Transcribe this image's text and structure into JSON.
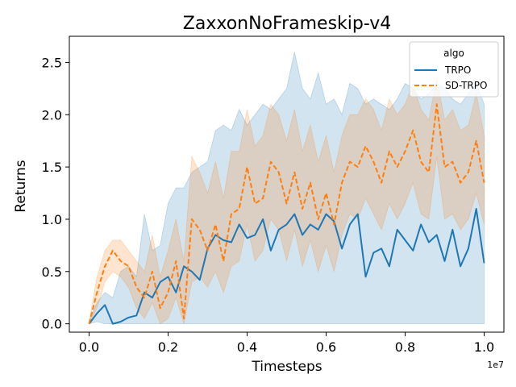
{
  "chart_data": {
    "type": "line",
    "title": "ZaxxonNoFrameskip-v4",
    "xlabel": "Timesteps",
    "ylabel": "Returns",
    "x_offset_label": "1e7",
    "xlim": [
      -0.05,
      1.05
    ],
    "ylim": [
      -0.08,
      2.75
    ],
    "x_ticks": [
      0.0,
      0.2,
      0.4,
      0.6,
      0.8,
      1.0
    ],
    "x_tick_labels": [
      "0.0",
      "0.2",
      "0.4",
      "0.6",
      "0.8",
      "1.0"
    ],
    "y_ticks": [
      0.0,
      0.5,
      1.0,
      1.5,
      2.0,
      2.5
    ],
    "y_tick_labels": [
      "0.0",
      "0.5",
      "1.0",
      "1.5",
      "2.0",
      "2.5"
    ],
    "grid": false,
    "legend": {
      "title": "algo",
      "placement": "top-right"
    },
    "series": [
      {
        "name": "TRPO",
        "color": "#1f77b4",
        "dash": "solid",
        "x": [
          0.0,
          0.02,
          0.04,
          0.06,
          0.08,
          0.1,
          0.12,
          0.14,
          0.16,
          0.18,
          0.2,
          0.22,
          0.24,
          0.26,
          0.28,
          0.3,
          0.32,
          0.34,
          0.36,
          0.38,
          0.4,
          0.42,
          0.44,
          0.46,
          0.48,
          0.5,
          0.52,
          0.54,
          0.56,
          0.58,
          0.6,
          0.62,
          0.64,
          0.66,
          0.68,
          0.7,
          0.72,
          0.74,
          0.76,
          0.78,
          0.8,
          0.82,
          0.84,
          0.86,
          0.88,
          0.9,
          0.92,
          0.94,
          0.96,
          0.98,
          1.0
        ],
        "y": [
          0.0,
          0.1,
          0.18,
          0.0,
          0.02,
          0.06,
          0.08,
          0.3,
          0.25,
          0.4,
          0.45,
          0.3,
          0.55,
          0.5,
          0.42,
          0.72,
          0.85,
          0.8,
          0.78,
          0.95,
          0.82,
          0.85,
          1.0,
          0.7,
          0.9,
          0.95,
          1.05,
          0.85,
          0.95,
          0.9,
          1.05,
          0.98,
          0.72,
          0.95,
          1.05,
          0.45,
          0.68,
          0.72,
          0.55,
          0.9,
          0.8,
          0.7,
          0.95,
          0.78,
          0.85,
          0.6,
          0.9,
          0.55,
          0.72,
          1.1,
          0.58
        ],
        "lower": [
          0.0,
          0.02,
          0.0,
          0.0,
          0.0,
          0.0,
          0.0,
          0.0,
          0.0,
          0.0,
          0.0,
          0.0,
          0.0,
          0.0,
          0.0,
          0.0,
          0.0,
          0.0,
          0.0,
          0.0,
          0.0,
          0.0,
          0.0,
          0.0,
          0.0,
          0.0,
          0.0,
          0.0,
          0.0,
          0.0,
          0.0,
          0.0,
          0.0,
          0.0,
          0.0,
          0.0,
          0.0,
          0.0,
          0.0,
          0.0,
          0.0,
          0.0,
          0.0,
          0.0,
          0.0,
          0.0,
          0.0,
          0.0,
          0.0,
          0.0,
          0.0
        ],
        "upper": [
          0.02,
          0.2,
          0.3,
          0.25,
          0.5,
          0.55,
          0.45,
          1.05,
          0.7,
          0.75,
          1.15,
          1.3,
          1.3,
          1.45,
          1.5,
          1.55,
          1.85,
          1.9,
          1.85,
          2.05,
          1.9,
          2.0,
          2.1,
          2.05,
          2.15,
          2.25,
          2.6,
          2.25,
          2.15,
          2.4,
          2.1,
          2.15,
          2.0,
          2.3,
          2.25,
          2.1,
          2.15,
          2.1,
          2.05,
          2.15,
          2.3,
          2.25,
          2.15,
          2.2,
          2.3,
          2.25,
          2.15,
          2.1,
          2.2,
          2.3,
          2.1
        ]
      },
      {
        "name": "SD-TRPO",
        "color": "#ff7f0e",
        "dash": "dashed",
        "x": [
          0.0,
          0.02,
          0.04,
          0.06,
          0.08,
          0.1,
          0.12,
          0.14,
          0.16,
          0.18,
          0.2,
          0.22,
          0.24,
          0.26,
          0.28,
          0.3,
          0.32,
          0.34,
          0.36,
          0.38,
          0.4,
          0.42,
          0.44,
          0.46,
          0.48,
          0.5,
          0.52,
          0.54,
          0.56,
          0.58,
          0.6,
          0.62,
          0.64,
          0.66,
          0.68,
          0.7,
          0.72,
          0.74,
          0.76,
          0.78,
          0.8,
          0.82,
          0.84,
          0.86,
          0.88,
          0.9,
          0.92,
          0.94,
          0.96,
          0.98,
          1.0
        ],
        "y": [
          0.0,
          0.3,
          0.55,
          0.7,
          0.6,
          0.55,
          0.35,
          0.25,
          0.5,
          0.15,
          0.3,
          0.6,
          0.05,
          1.0,
          0.9,
          0.7,
          0.95,
          0.6,
          1.05,
          1.1,
          1.5,
          1.15,
          1.2,
          1.55,
          1.45,
          1.15,
          1.45,
          1.1,
          1.35,
          1.0,
          1.25,
          0.95,
          1.35,
          1.55,
          1.5,
          1.7,
          1.55,
          1.35,
          1.65,
          1.5,
          1.65,
          1.85,
          1.55,
          1.45,
          2.1,
          1.5,
          1.55,
          1.35,
          1.45,
          1.75,
          1.35
        ],
        "lower": [
          0.0,
          0.15,
          0.4,
          0.5,
          0.45,
          0.35,
          0.15,
          0.05,
          0.2,
          0.0,
          0.05,
          0.25,
          0.0,
          0.4,
          0.45,
          0.35,
          0.5,
          0.3,
          0.55,
          0.6,
          0.95,
          0.6,
          0.7,
          1.0,
          0.9,
          0.6,
          0.9,
          0.55,
          0.8,
          0.5,
          0.75,
          0.5,
          0.85,
          1.05,
          1.0,
          1.2,
          1.05,
          0.9,
          1.15,
          1.0,
          1.15,
          1.35,
          1.05,
          1.0,
          1.6,
          1.0,
          1.05,
          0.9,
          1.0,
          1.25,
          0.95
        ],
        "upper": [
          0.02,
          0.45,
          0.7,
          0.8,
          0.8,
          0.7,
          0.6,
          0.5,
          0.85,
          0.45,
          0.7,
          1.0,
          0.6,
          1.6,
          1.45,
          1.25,
          1.55,
          1.2,
          1.65,
          1.65,
          2.05,
          1.7,
          1.8,
          2.1,
          2.0,
          1.75,
          2.05,
          1.65,
          1.9,
          1.55,
          1.8,
          1.45,
          1.8,
          2.0,
          2.0,
          2.15,
          2.05,
          1.85,
          2.15,
          2.0,
          2.1,
          2.3,
          2.05,
          1.95,
          2.35,
          1.95,
          2.05,
          1.85,
          1.9,
          2.2,
          1.8
        ]
      }
    ]
  }
}
